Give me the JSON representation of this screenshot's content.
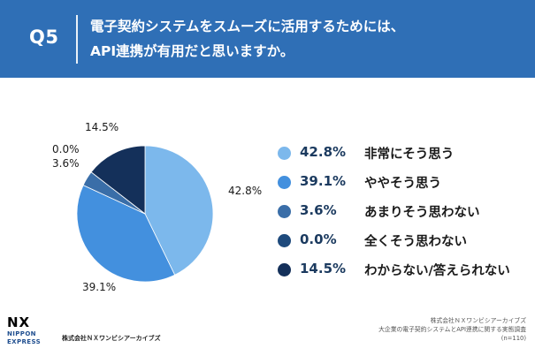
{
  "header": {
    "question_number": "Q5",
    "line1": "電子契約システムをスムーズに活用するためには、",
    "line2": "API連携が有用だと思いますか。"
  },
  "chart_data": {
    "type": "pie",
    "title": "電子契約システムをスムーズに活用するためには、API連携が有用だと思いますか。",
    "slices": [
      {
        "label": "非常にそう思う",
        "value": 42.8,
        "display": "42.8%",
        "color": "#7cb8ec"
      },
      {
        "label": "ややそう思う",
        "value": 39.1,
        "display": "39.1%",
        "color": "#4390de"
      },
      {
        "label": "あまりそう思わない",
        "value": 3.6,
        "display": "3.6%",
        "color": "#3a6ea8"
      },
      {
        "label": "全くそう思わない",
        "value": 0.0,
        "display": "0.0%",
        "color": "#1e4a7c"
      },
      {
        "label": "わからない/答えられない",
        "value": 14.5,
        "display": "14.5%",
        "color": "#14305a"
      }
    ],
    "legend_placement": "right"
  },
  "footer": {
    "logo_nx": "NX",
    "logo_line1": "NIPPON",
    "logo_line2": "EXPRESS",
    "company": "株式会社ＮＸワンビシアーカイブズ",
    "source_line1": "株式会社ＮＸワンビシアーカイブズ",
    "source_line2": "大企業の電子契約システムとAPI連携に関する実態調査",
    "source_line3": "(n=110)"
  }
}
